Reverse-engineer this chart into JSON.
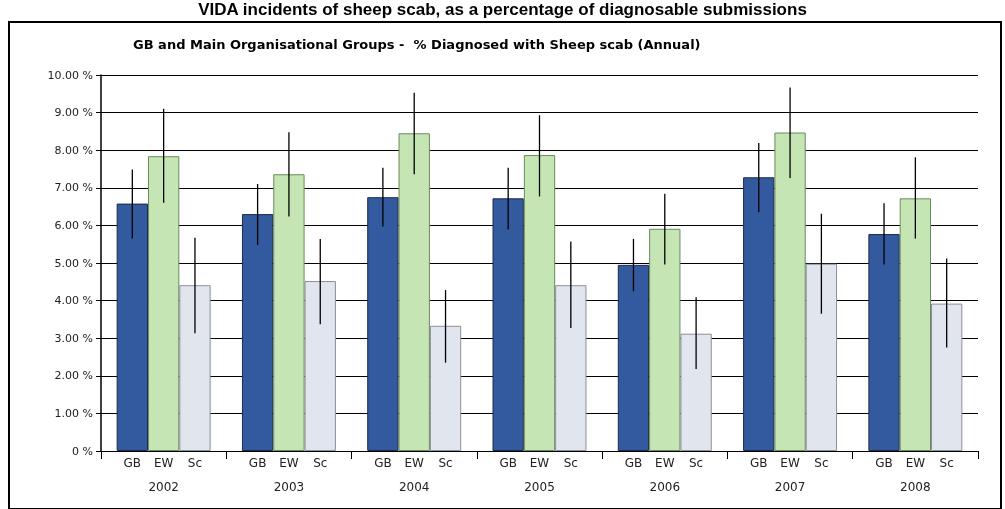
{
  "chart_data": {
    "type": "bar",
    "title": "VIDA incidents of sheep scab, as a percentage of diagnosable submissions",
    "subtitle": "GB and Main Organisational Groups -  % Diagnosed with Sheep scab (Annual)",
    "categories": [
      "2002",
      "2003",
      "2004",
      "2005",
      "2006",
      "2007",
      "2008"
    ],
    "series": [
      {
        "name": "GB",
        "color": "#335a9e",
        "values": [
          6.58,
          6.3,
          6.75,
          6.72,
          4.95,
          7.28,
          5.77
        ],
        "errors": [
          [
            5.65,
            7.49
          ],
          [
            5.48,
            7.1
          ],
          [
            5.97,
            7.53
          ],
          [
            5.89,
            7.53
          ],
          [
            4.25,
            5.64
          ],
          [
            6.35,
            8.19
          ],
          [
            4.96,
            6.59
          ]
        ]
      },
      {
        "name": "EW",
        "color": "#c5e5b5",
        "values": [
          7.84,
          7.36,
          8.45,
          7.87,
          5.91,
          8.47,
          6.72
        ],
        "errors": [
          [
            6.6,
            9.1
          ],
          [
            6.24,
            8.48
          ],
          [
            7.36,
            9.53
          ],
          [
            6.77,
            8.93
          ],
          [
            4.96,
            6.84
          ],
          [
            7.26,
            9.67
          ],
          [
            5.65,
            7.81
          ]
        ]
      },
      {
        "name": "Sc",
        "color": "#e0e5ee",
        "values": [
          4.41,
          4.52,
          3.33,
          4.41,
          3.12,
          4.98,
          3.92
        ],
        "errors": [
          [
            3.13,
            5.67
          ],
          [
            3.37,
            5.64
          ],
          [
            2.35,
            4.28
          ],
          [
            3.27,
            5.57
          ],
          [
            2.18,
            4.09
          ],
          [
            3.65,
            6.31
          ],
          [
            2.75,
            5.12
          ]
        ]
      }
    ],
    "ylim": [
      0,
      10
    ],
    "yticks": [
      {
        "value": 0,
        "label": "0 %"
      },
      {
        "value": 1,
        "label": "1.00 %"
      },
      {
        "value": 2,
        "label": "2.00 %"
      },
      {
        "value": 3,
        "label": "3.00 %"
      },
      {
        "value": 4,
        "label": "4.00 %"
      },
      {
        "value": 5,
        "label": "5.00 %"
      },
      {
        "value": 6,
        "label": "6.00 %"
      },
      {
        "value": 7,
        "label": "7.00 %"
      },
      {
        "value": 8,
        "label": "8.00 %"
      },
      {
        "value": 9,
        "label": "9.00 %"
      },
      {
        "value": 10,
        "label": "10.00 %"
      }
    ],
    "grid": "y",
    "legend": false
  }
}
